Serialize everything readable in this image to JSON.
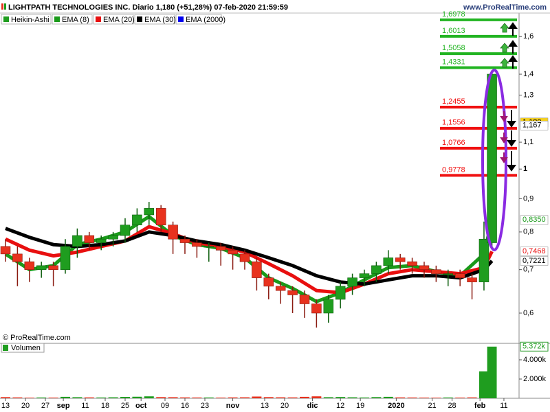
{
  "chart_data": {
    "type": "candlestick",
    "title": "LIGHTPATH TECHNOLOGIES INC. Diario 1,180 (+51,28%) 07-feb-2020 21:59:59",
    "source": "www.ProRealTime.com",
    "copyright": "© ProRealTime.com",
    "name": "Heikin-Ashi",
    "up_color": "#1f9d1f",
    "down_color": "#e8321e",
    "log_scale": true,
    "xlim": [
      -1.38,
      128.8
    ],
    "ylim": [
      0.539,
      1.739
    ],
    "yticks": [
      {
        "value": 0.6,
        "label": "0,6"
      },
      {
        "value": 0.7,
        "label": "0,7"
      },
      {
        "value": 0.8,
        "label": "0,8"
      },
      {
        "value": 0.9,
        "label": "0,9"
      },
      1,
      {
        "value": 1.1,
        "label": "1,1"
      },
      {
        "value": 1.3,
        "label": "1,3"
      },
      {
        "value": 1.4,
        "label": "1,4"
      },
      {
        "value": 1.6,
        "label": "1,6"
      }
    ],
    "xticks": [
      {
        "value": 0,
        "label": "13"
      },
      {
        "value": 5,
        "label": "20"
      },
      {
        "value": 10,
        "label": "27"
      },
      {
        "value": 14.5,
        "label": "sep"
      },
      {
        "value": 20,
        "label": "11"
      },
      {
        "value": 25,
        "label": "18"
      },
      {
        "value": 30,
        "label": "25"
      },
      {
        "value": 34,
        "label": "oct"
      },
      {
        "value": 40,
        "label": "09"
      },
      {
        "value": 45,
        "label": "16"
      },
      {
        "value": 50,
        "label": "23"
      },
      {
        "value": 57,
        "label": "nov"
      },
      {
        "value": 65,
        "label": "13"
      },
      {
        "value": 70,
        "label": "20"
      },
      {
        "value": 77,
        "label": "dic"
      },
      {
        "value": 84,
        "label": "12"
      },
      {
        "value": 89,
        "label": "19"
      },
      {
        "value": 98,
        "label": "2020"
      },
      {
        "value": 107,
        "label": "21"
      },
      {
        "value": 112,
        "label": "28"
      },
      {
        "value": 119,
        "label": "feb"
      },
      {
        "value": 125,
        "label": "11"
      }
    ],
    "x": [
      0,
      3,
      6,
      9,
      12,
      15,
      18,
      21,
      24,
      27,
      30,
      33,
      36,
      39,
      42,
      45,
      48,
      51,
      54,
      57,
      60,
      63,
      66,
      69,
      72,
      75,
      78,
      81,
      84,
      87,
      90,
      93,
      96,
      99,
      102,
      105,
      108,
      111,
      114,
      117,
      120,
      122
    ],
    "open": [
      0.76,
      0.74,
      0.72,
      0.7,
      0.71,
      0.7,
      0.76,
      0.79,
      0.77,
      0.78,
      0.79,
      0.82,
      0.85,
      0.87,
      0.82,
      0.78,
      0.77,
      0.76,
      0.76,
      0.75,
      0.74,
      0.72,
      0.68,
      0.66,
      0.65,
      0.64,
      0.62,
      0.6,
      0.63,
      0.66,
      0.68,
      0.69,
      0.71,
      0.73,
      0.72,
      0.71,
      0.7,
      0.69,
      0.69,
      0.68,
      0.67,
      0.77
    ],
    "high": [
      0.78,
      0.76,
      0.73,
      0.72,
      0.72,
      0.78,
      0.81,
      0.8,
      0.79,
      0.8,
      0.84,
      0.87,
      0.89,
      0.88,
      0.83,
      0.79,
      0.78,
      0.77,
      0.77,
      0.76,
      0.75,
      0.73,
      0.69,
      0.67,
      0.66,
      0.65,
      0.63,
      0.64,
      0.67,
      0.69,
      0.7,
      0.72,
      0.75,
      0.74,
      0.73,
      0.72,
      0.71,
      0.7,
      0.7,
      0.69,
      0.83,
      1.42
    ],
    "low": [
      0.72,
      0.66,
      0.67,
      0.68,
      0.66,
      0.69,
      0.73,
      0.75,
      0.75,
      0.76,
      0.77,
      0.8,
      0.82,
      0.8,
      0.74,
      0.74,
      0.73,
      0.72,
      0.71,
      0.7,
      0.7,
      0.65,
      0.63,
      0.62,
      0.6,
      0.59,
      0.57,
      0.58,
      0.61,
      0.64,
      0.66,
      0.67,
      0.69,
      0.7,
      0.69,
      0.68,
      0.67,
      0.66,
      0.66,
      0.63,
      0.65,
      0.76
    ],
    "close": [
      0.74,
      0.72,
      0.7,
      0.71,
      0.7,
      0.76,
      0.79,
      0.77,
      0.78,
      0.79,
      0.82,
      0.85,
      0.87,
      0.82,
      0.78,
      0.77,
      0.76,
      0.76,
      0.75,
      0.74,
      0.72,
      0.68,
      0.66,
      0.65,
      0.64,
      0.62,
      0.6,
      0.63,
      0.66,
      0.68,
      0.69,
      0.71,
      0.73,
      0.72,
      0.71,
      0.7,
      0.69,
      0.69,
      0.68,
      0.67,
      0.78,
      1.4
    ],
    "series": [
      {
        "name": "EMA (8)",
        "color": "#1a9a1a",
        "width": 5,
        "x": [
          0,
          6,
          12,
          18,
          24,
          30,
          36,
          42,
          48,
          54,
          60,
          66,
          72,
          78,
          84,
          90,
          96,
          102,
          108,
          114,
          120,
          122
        ],
        "values": [
          0.74,
          0.7,
          0.71,
          0.765,
          0.78,
          0.8,
          0.845,
          0.79,
          0.765,
          0.755,
          0.73,
          0.68,
          0.655,
          0.625,
          0.645,
          0.675,
          0.705,
          0.71,
          0.695,
          0.685,
          0.74,
          0.835
        ]
      },
      {
        "name": "EMA (20)",
        "color": "#e80f0f",
        "width": 5,
        "x": [
          0,
          6,
          12,
          18,
          24,
          30,
          36,
          42,
          48,
          54,
          60,
          66,
          72,
          78,
          84,
          90,
          96,
          102,
          108,
          114,
          120,
          122
        ],
        "values": [
          0.78,
          0.75,
          0.735,
          0.745,
          0.76,
          0.775,
          0.815,
          0.795,
          0.77,
          0.76,
          0.745,
          0.715,
          0.685,
          0.65,
          0.645,
          0.665,
          0.69,
          0.7,
          0.695,
          0.69,
          0.705,
          0.7468
        ]
      },
      {
        "name": "EMA (30)",
        "color": "#000000",
        "width": 5,
        "x": [
          0,
          6,
          12,
          18,
          24,
          30,
          36,
          42,
          48,
          54,
          60,
          66,
          72,
          78,
          84,
          90,
          96,
          102,
          108,
          114,
          120,
          122
        ],
        "values": [
          0.81,
          0.785,
          0.765,
          0.76,
          0.765,
          0.775,
          0.8,
          0.79,
          0.775,
          0.765,
          0.75,
          0.73,
          0.71,
          0.685,
          0.67,
          0.665,
          0.675,
          0.685,
          0.685,
          0.68,
          0.7,
          0.7221
        ]
      },
      {
        "name": "EMA (2000)",
        "color": "#0000ee",
        "width": 3,
        "x": [],
        "values": []
      }
    ],
    "last_values": [
      {
        "value": 1.18,
        "label": "1,180",
        "color": "#000000",
        "background": "#f5d020"
      },
      {
        "value": 1.167,
        "label": "1,167",
        "color": "#000000",
        "background": "#ffffff"
      },
      {
        "value": 0.835,
        "label": "0,8350",
        "color": "#1a9a1a",
        "background": "#ffffff"
      },
      {
        "value": 0.7468,
        "label": "0,7468",
        "color": "#e80f0f",
        "background": "#ffffff"
      },
      {
        "value": 0.7221,
        "label": "0,7221",
        "color": "#000000",
        "background": "#ffffff"
      }
    ],
    "levels": [
      {
        "value": 1.6978,
        "label": "1,6978",
        "color": "#22b422"
      },
      {
        "value": 1.6013,
        "label": "1,6013",
        "color": "#22b422"
      },
      {
        "value": 1.5058,
        "label": "1,5058",
        "color": "#22b422"
      },
      {
        "value": 1.4331,
        "label": "1,4331",
        "color": "#22b422"
      },
      {
        "value": 1.2455,
        "label": "1,2455",
        "color": "#f01010"
      },
      {
        "value": 1.1556,
        "label": "1,1556",
        "color": "#f01010"
      },
      {
        "value": 1.0766,
        "label": "1,0766",
        "color": "#f01010"
      },
      {
        "value": 0.9778,
        "label": "0,9778",
        "color": "#f01010"
      }
    ],
    "volume": {
      "name": "Volumen",
      "ylim": [
        0,
        5714
      ],
      "yticks": [
        {
          "value": 2000,
          "label": "2.000k"
        },
        {
          "value": 4000,
          "label": "4.000k"
        }
      ],
      "last": {
        "value": 5372,
        "label": "5.372k"
      },
      "values": [
        120,
        90,
        60,
        80,
        70,
        150,
        110,
        90,
        80,
        100,
        140,
        160,
        200,
        120,
        110,
        90,
        80,
        80,
        70,
        90,
        100,
        180,
        120,
        100,
        90,
        150,
        200,
        110,
        130,
        100,
        80,
        120,
        150,
        90,
        80,
        70,
        60,
        80,
        70,
        90,
        2800,
        5372
      ]
    }
  }
}
